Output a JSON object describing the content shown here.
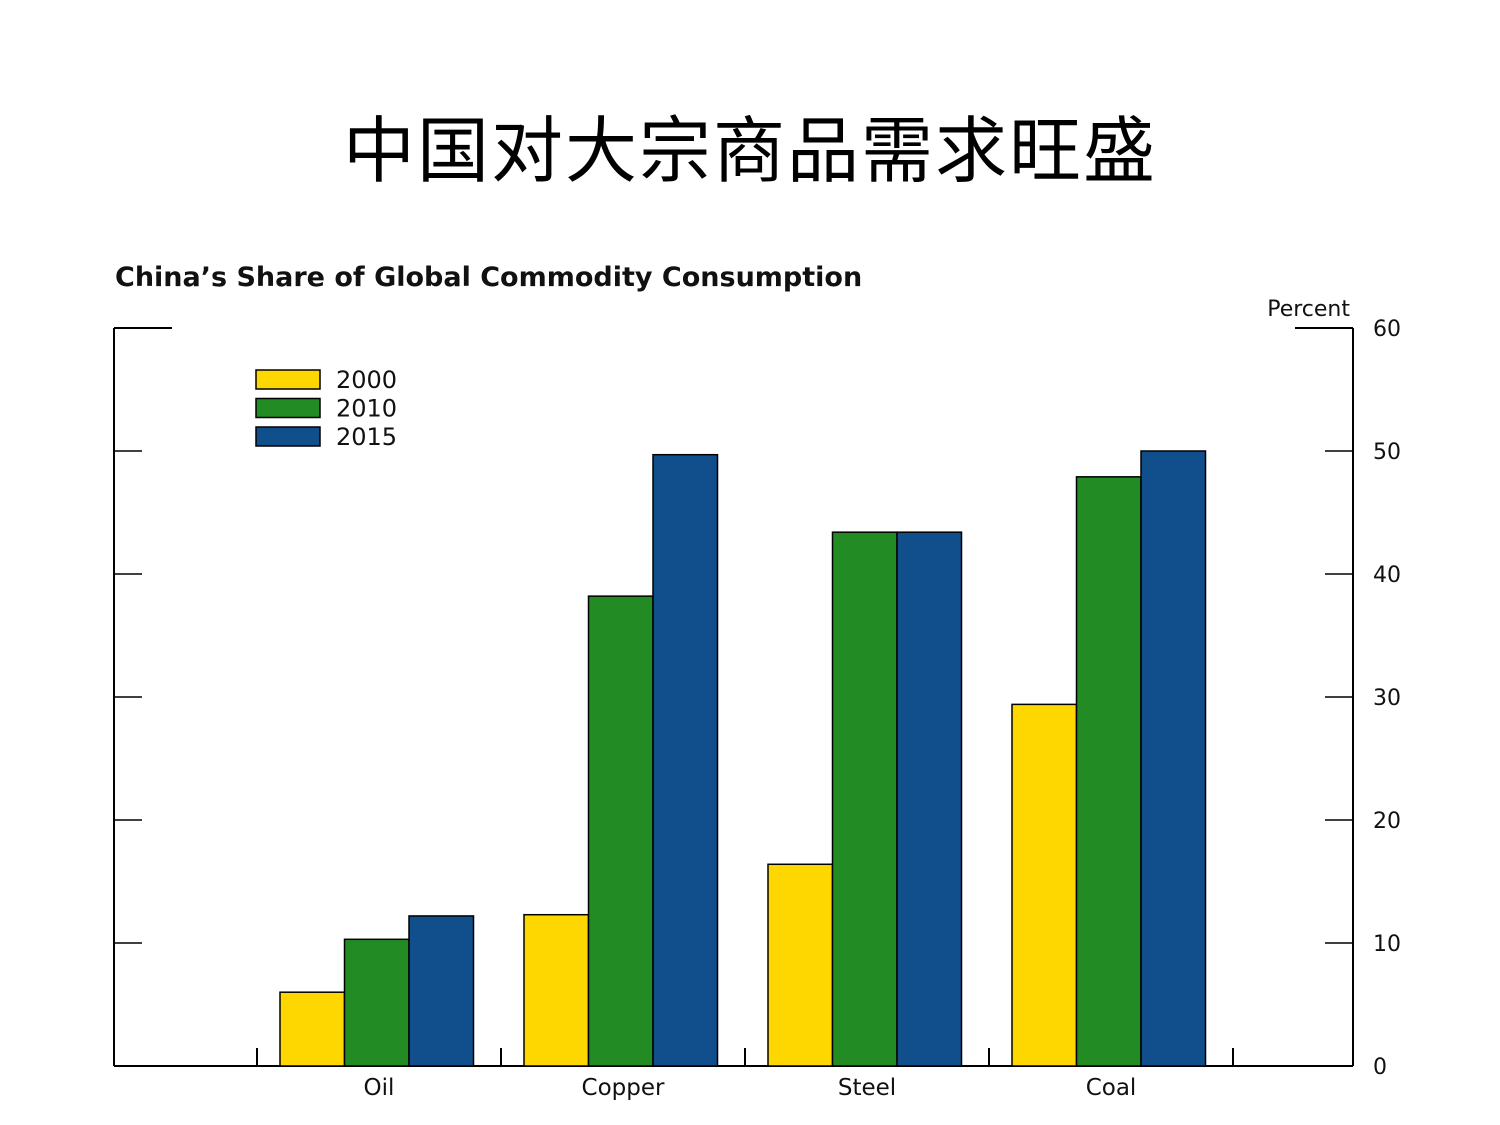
{
  "slide": {
    "title": "中国对大宗商品需求旺盛"
  },
  "chart_data": {
    "type": "bar",
    "title": "China’s Share of Global Commodity Consumption",
    "unit_label": "Percent",
    "categories": [
      "Oil",
      "Copper",
      "Steel",
      "Coal"
    ],
    "series": [
      {
        "name": "2000",
        "color": "#FFD700",
        "values": [
          6,
          12.3,
          16.4,
          29.4
        ]
      },
      {
        "name": "2010",
        "color": "#238B23",
        "values": [
          10.3,
          38.2,
          43.4,
          47.9
        ]
      },
      {
        "name": "2015",
        "color": "#114F8C",
        "values": [
          12.2,
          49.7,
          43.4,
          50
        ]
      }
    ],
    "ylim": [
      0,
      60
    ],
    "yticks": [
      0,
      10,
      20,
      30,
      40,
      50,
      60
    ],
    "y_axis_side": "right",
    "legend_position": "top-left",
    "grid": false
  }
}
